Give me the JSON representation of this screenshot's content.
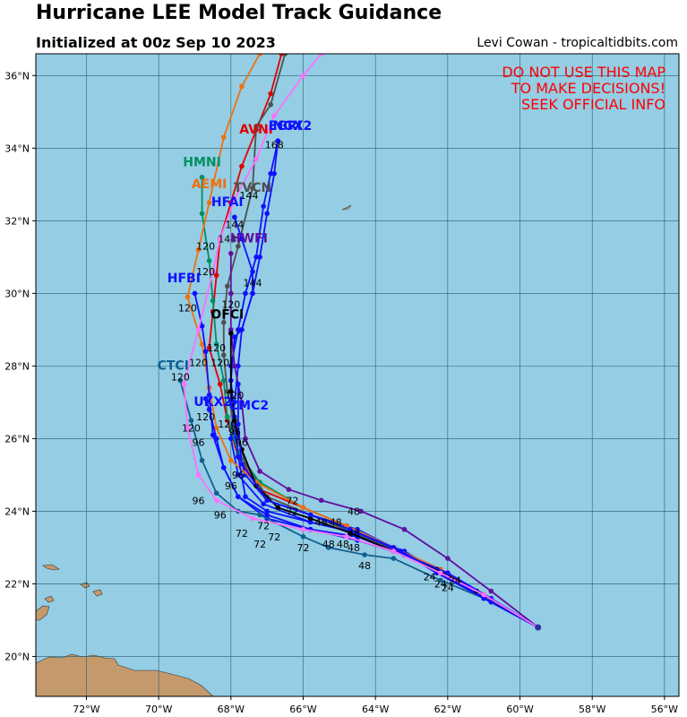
{
  "header": {
    "title": "Hurricane LEE Model Track Guidance",
    "subtitle": "Initialized at 00z Sep 10 2023",
    "credit": "Levi Cowan - tropicaltidbits.com"
  },
  "warning": [
    "DO NOT USE THIS MAP",
    "TO MAKE DECISIONS!",
    "SEEK OFFICIAL INFO"
  ],
  "colors": {
    "ocean": "#94cde4",
    "land": "#c49a6c",
    "grid": "#2b5d6e",
    "warning": "#ff0000"
  },
  "axes": {
    "lon_range": [
      -73.4,
      -55.6
    ],
    "lat_range": [
      18.9,
      36.6
    ],
    "lon_ticks": [
      {
        "v": -72,
        "t": "72°W"
      },
      {
        "v": -70,
        "t": "70°W"
      },
      {
        "v": -68,
        "t": "68°W"
      },
      {
        "v": -66,
        "t": "66°W"
      },
      {
        "v": -64,
        "t": "64°W"
      },
      {
        "v": -62,
        "t": "62°W"
      },
      {
        "v": -60,
        "t": "60°W"
      },
      {
        "v": -58,
        "t": "58°W"
      },
      {
        "v": -56,
        "t": "56°W"
      }
    ],
    "lat_ticks": [
      {
        "v": 20,
        "t": "20°N"
      },
      {
        "v": 22,
        "t": "22°N"
      },
      {
        "v": 24,
        "t": "24°N"
      },
      {
        "v": 26,
        "t": "26°N"
      },
      {
        "v": 28,
        "t": "28°N"
      },
      {
        "v": 30,
        "t": "30°N"
      },
      {
        "v": 32,
        "t": "32°N"
      },
      {
        "v": 34,
        "t": "34°N"
      },
      {
        "v": 36,
        "t": "36°N"
      }
    ]
  },
  "models": [
    {
      "name": "AVNI",
      "color": "#e00000",
      "label": [
        -67.3,
        34.4
      ],
      "track": [
        [
          -59.5,
          20.8
        ],
        [
          -61.0,
          21.7
        ],
        [
          -62.0,
          22.3
        ],
        [
          -63.5,
          23.0
        ],
        [
          -64.8,
          23.6
        ],
        [
          -66.0,
          24.1
        ],
        [
          -67.2,
          24.6
        ],
        [
          -67.8,
          25.5
        ],
        [
          -68.1,
          26.5
        ],
        [
          -68.3,
          27.5
        ],
        [
          -68.6,
          28.5
        ],
        [
          -68.5,
          29.5
        ],
        [
          -68.4,
          30.5
        ],
        [
          -68.3,
          31.5
        ],
        [
          -68.0,
          32.5
        ],
        [
          -67.7,
          33.5
        ],
        [
          -67.3,
          34.5
        ],
        [
          -66.9,
          35.5
        ],
        [
          -66.6,
          36.6
        ]
      ]
    },
    {
      "name": "EGRI",
      "color": "#1010ff",
      "label": [
        -66.5,
        34.5
      ],
      "track": [
        [
          -59.5,
          20.8
        ],
        [
          -61.0,
          21.6
        ],
        [
          -62.2,
          22.3
        ],
        [
          -63.5,
          23.0
        ],
        [
          -64.5,
          23.5
        ],
        [
          -65.8,
          23.9
        ],
        [
          -67.0,
          24.3
        ],
        [
          -67.6,
          25.0
        ],
        [
          -67.9,
          26.0
        ],
        [
          -68.0,
          27.0
        ],
        [
          -68.0,
          28.0
        ],
        [
          -67.8,
          29.0
        ],
        [
          -67.6,
          30.0
        ],
        [
          -67.3,
          31.0
        ],
        [
          -67.1,
          32.4
        ],
        [
          -66.9,
          33.3
        ],
        [
          -66.7,
          34.2
        ]
      ]
    },
    {
      "name": "NGX2",
      "color": "#1010ff",
      "label": [
        -66.3,
        34.5
      ],
      "track": [
        [
          -59.5,
          20.8
        ],
        [
          -60.8,
          21.5
        ],
        [
          -62.0,
          22.2
        ],
        [
          -63.2,
          22.9
        ],
        [
          -64.5,
          23.4
        ],
        [
          -65.8,
          23.7
        ],
        [
          -67.1,
          24.2
        ],
        [
          -67.8,
          25.0
        ],
        [
          -68.0,
          26.0
        ],
        [
          -67.9,
          27.0
        ],
        [
          -67.8,
          28.0
        ],
        [
          -67.7,
          29.0
        ],
        [
          -67.4,
          30.0
        ],
        [
          -67.2,
          31.0
        ],
        [
          -67.0,
          32.2
        ],
        [
          -66.8,
          33.3
        ],
        [
          -66.7,
          34.2
        ]
      ]
    },
    {
      "name": "HMNI",
      "color": "#009060",
      "label": [
        -68.8,
        33.5
      ],
      "track": [
        [
          -59.5,
          20.8
        ],
        [
          -61.0,
          21.7
        ],
        [
          -62.2,
          22.4
        ],
        [
          -63.5,
          23.0
        ],
        [
          -64.8,
          23.6
        ],
        [
          -66.0,
          24.1
        ],
        [
          -67.2,
          24.8
        ],
        [
          -67.8,
          25.6
        ],
        [
          -68.1,
          26.6
        ],
        [
          -68.2,
          27.6
        ],
        [
          -68.4,
          28.6
        ],
        [
          -68.5,
          29.8
        ],
        [
          -68.6,
          30.9
        ],
        [
          -68.8,
          32.2
        ],
        [
          -68.8,
          33.2
        ]
      ]
    },
    {
      "name": "TVCN",
      "color": "#505050",
      "label": [
        -67.4,
        32.8
      ],
      "track": [
        [
          -59.5,
          20.8
        ],
        [
          -61.0,
          21.7
        ],
        [
          -62.2,
          22.3
        ],
        [
          -63.4,
          22.9
        ],
        [
          -64.6,
          23.4
        ],
        [
          -65.8,
          23.9
        ],
        [
          -67.0,
          24.4
        ],
        [
          -67.6,
          25.3
        ],
        [
          -67.9,
          26.3
        ],
        [
          -68.1,
          27.3
        ],
        [
          -68.2,
          28.3
        ],
        [
          -68.2,
          29.2
        ],
        [
          -68.1,
          30.2
        ],
        [
          -67.8,
          31.3
        ],
        [
          -67.4,
          32.9
        ],
        [
          -67.3,
          34.6
        ],
        [
          -66.9,
          35.2
        ],
        [
          -66.5,
          36.6
        ]
      ]
    },
    {
      "name": "AEMI",
      "color": "#f07010",
      "label": [
        -68.6,
        32.9
      ],
      "track": [
        [
          -59.5,
          20.8
        ],
        [
          -61.0,
          21.7
        ],
        [
          -62.2,
          22.4
        ],
        [
          -63.5,
          23.0
        ],
        [
          -64.8,
          23.6
        ],
        [
          -66.0,
          24.1
        ],
        [
          -67.3,
          24.8
        ],
        [
          -68.0,
          25.4
        ],
        [
          -68.4,
          26.3
        ],
        [
          -68.6,
          27.4
        ],
        [
          -68.8,
          28.6
        ],
        [
          -69.2,
          29.9
        ],
        [
          -68.9,
          31.2
        ],
        [
          -68.6,
          32.5
        ],
        [
          -68.2,
          34.3
        ],
        [
          -67.7,
          35.7
        ],
        [
          -67.2,
          36.6
        ]
      ]
    },
    {
      "name": "HFAI",
      "color": "#1010ff",
      "label": [
        -68.1,
        32.4
      ],
      "track": [
        [
          -59.5,
          20.8
        ],
        [
          -60.8,
          21.5
        ],
        [
          -62.0,
          22.2
        ],
        [
          -63.3,
          22.9
        ],
        [
          -64.5,
          23.4
        ],
        [
          -65.8,
          23.7
        ],
        [
          -67.0,
          24.0
        ],
        [
          -67.6,
          24.4
        ],
        [
          -67.8,
          25.5
        ],
        [
          -67.9,
          26.6
        ],
        [
          -68.0,
          27.6
        ],
        [
          -67.9,
          28.8
        ],
        [
          -67.7,
          29.0
        ],
        [
          -67.4,
          30.0
        ],
        [
          -67.4,
          30.6
        ],
        [
          -67.7,
          31.5
        ],
        [
          -67.9,
          32.1
        ]
      ]
    },
    {
      "name": "HWFI",
      "color": "#6010a0",
      "label": [
        -67.5,
        31.4
      ],
      "track": [
        [
          -59.5,
          20.8
        ],
        [
          -60.8,
          21.8
        ],
        [
          -62.0,
          22.7
        ],
        [
          -63.2,
          23.5
        ],
        [
          -64.4,
          24.0
        ],
        [
          -65.5,
          24.3
        ],
        [
          -66.4,
          24.6
        ],
        [
          -67.2,
          25.1
        ],
        [
          -67.6,
          26.0
        ],
        [
          -67.7,
          27.0
        ],
        [
          -67.9,
          28.0
        ],
        [
          -68.0,
          29.0
        ],
        [
          -68.0,
          30.0
        ],
        [
          -68.0,
          31.1
        ]
      ]
    },
    {
      "name": "HFBI",
      "color": "#1010ff",
      "label": [
        -69.3,
        30.3
      ],
      "track": [
        [
          -59.5,
          20.8
        ],
        [
          -60.8,
          21.5
        ],
        [
          -62.0,
          22.2
        ],
        [
          -63.2,
          22.8
        ],
        [
          -64.5,
          23.3
        ],
        [
          -65.8,
          23.5
        ],
        [
          -67.0,
          23.8
        ],
        [
          -67.8,
          24.4
        ],
        [
          -68.2,
          25.2
        ],
        [
          -68.5,
          26.1
        ],
        [
          -68.6,
          27.2
        ],
        [
          -68.7,
          28.4
        ],
        [
          -68.8,
          29.1
        ],
        [
          -69.0,
          30.0
        ]
      ]
    },
    {
      "name": "OFCI",
      "color": "#000000",
      "label": [
        -68.1,
        29.3
      ],
      "track": [
        [
          -59.5,
          20.8
        ],
        [
          -61.2,
          21.8
        ],
        [
          -62.3,
          22.4
        ],
        [
          -63.5,
          22.9
        ],
        [
          -64.7,
          23.4
        ],
        [
          -65.8,
          23.8
        ],
        [
          -66.7,
          24.1
        ],
        [
          -67.3,
          24.7
        ],
        [
          -67.7,
          25.7
        ],
        [
          -67.9,
          26.5
        ],
        [
          -68.0,
          27.3
        ],
        [
          -68.0,
          28.9
        ]
      ]
    },
    {
      "name": "CTCI",
      "color": "#106090",
      "label": [
        -69.6,
        27.9
      ],
      "track": [
        [
          -59.5,
          20.8
        ],
        [
          -61.0,
          21.6
        ],
        [
          -62.2,
          22.1
        ],
        [
          -63.5,
          22.7
        ],
        [
          -64.3,
          22.8
        ],
        [
          -65.3,
          23.0
        ],
        [
          -66.0,
          23.3
        ],
        [
          -67.2,
          23.9
        ],
        [
          -67.8,
          24.0
        ],
        [
          -68.4,
          24.5
        ],
        [
          -68.8,
          25.4
        ],
        [
          -69.1,
          26.5
        ],
        [
          -69.4,
          27.6
        ]
      ]
    },
    {
      "name": "UKX2",
      "color": "#1010ff",
      "label": [
        -68.5,
        26.9
      ],
      "track": [
        [
          -59.5,
          20.8
        ],
        [
          -60.8,
          21.6
        ],
        [
          -62.0,
          22.3
        ],
        [
          -63.2,
          22.8
        ],
        [
          -64.5,
          23.2
        ],
        [
          -65.8,
          23.5
        ],
        [
          -67.0,
          23.9
        ],
        [
          -67.8,
          24.4
        ],
        [
          -68.2,
          25.2
        ],
        [
          -68.4,
          26.0
        ],
        [
          -68.6,
          26.8
        ],
        [
          -68.7,
          27.1
        ]
      ]
    },
    {
      "name": "CMC2",
      "color": "#1010ff",
      "label": [
        -67.5,
        26.8
      ],
      "track": [
        [
          -59.5,
          20.8
        ],
        [
          -61.0,
          21.6
        ],
        [
          -62.3,
          22.3
        ],
        [
          -63.5,
          23.0
        ],
        [
          -64.7,
          23.5
        ],
        [
          -65.8,
          23.9
        ],
        [
          -67.0,
          24.3
        ],
        [
          -67.7,
          25.3
        ],
        [
          -67.8,
          26.4
        ],
        [
          -67.8,
          27.5
        ]
      ]
    },
    {
      "name": "pink",
      "color": "#ff70ff",
      "label": null,
      "track": [
        [
          -59.5,
          20.8
        ],
        [
          -61.0,
          21.7
        ],
        [
          -62.2,
          22.3
        ],
        [
          -63.5,
          22.9
        ],
        [
          -64.8,
          23.3
        ],
        [
          -66.0,
          23.5
        ],
        [
          -67.4,
          23.8
        ],
        [
          -68.4,
          24.3
        ],
        [
          -68.9,
          25.0
        ],
        [
          -69.2,
          26.3
        ],
        [
          -69.3,
          27.5
        ],
        [
          -68.9,
          29.0
        ],
        [
          -68.5,
          30.6
        ],
        [
          -68.3,
          31.5
        ],
        [
          -67.9,
          32.6
        ],
        [
          -67.3,
          33.7
        ],
        [
          -66.8,
          34.9
        ],
        [
          -66.0,
          36.0
        ],
        [
          -65.5,
          36.6
        ]
      ]
    }
  ],
  "hour_labels": [
    {
      "t": "168",
      "p": [
        -66.8,
        34.0
      ]
    },
    {
      "t": "144",
      "p": [
        -67.5,
        32.6
      ]
    },
    {
      "t": "144",
      "p": [
        -67.9,
        31.8
      ]
    },
    {
      "t": "144",
      "p": [
        -68.1,
        31.4
      ]
    },
    {
      "t": "144",
      "p": [
        -67.4,
        30.2
      ]
    },
    {
      "t": "120",
      "p": [
        -68.7,
        31.2
      ]
    },
    {
      "t": "120",
      "p": [
        -68.7,
        30.5
      ]
    },
    {
      "t": "120",
      "p": [
        -68.0,
        29.6
      ]
    },
    {
      "t": "120",
      "p": [
        -69.2,
        29.5
      ]
    },
    {
      "t": "120",
      "p": [
        -68.4,
        28.4
      ]
    },
    {
      "t": "120",
      "p": [
        -68.9,
        28.0
      ]
    },
    {
      "t": "120",
      "p": [
        -68.3,
        28.0
      ]
    },
    {
      "t": "120",
      "p": [
        -69.4,
        27.6
      ]
    },
    {
      "t": "120",
      "p": [
        -67.9,
        27.1
      ]
    },
    {
      "t": "120",
      "p": [
        -68.7,
        26.5
      ]
    },
    {
      "t": "120",
      "p": [
        -68.1,
        26.3
      ]
    },
    {
      "t": "120",
      "p": [
        -69.1,
        26.2
      ]
    },
    {
      "t": "96",
      "p": [
        -68.9,
        25.8
      ]
    },
    {
      "t": "96",
      "p": [
        -67.9,
        26.1
      ]
    },
    {
      "t": "96",
      "p": [
        -67.7,
        25.8
      ]
    },
    {
      "t": "96",
      "p": [
        -67.8,
        24.9
      ]
    },
    {
      "t": "96",
      "p": [
        -68.0,
        24.6
      ]
    },
    {
      "t": "96",
      "p": [
        -68.9,
        24.2
      ]
    },
    {
      "t": "96",
      "p": [
        -68.3,
        23.8
      ]
    },
    {
      "t": "72",
      "p": [
        -66.3,
        24.2
      ]
    },
    {
      "t": "72",
      "p": [
        -66.3,
        23.9
      ]
    },
    {
      "t": "72",
      "p": [
        -67.1,
        23.5
      ]
    },
    {
      "t": "72",
      "p": [
        -67.7,
        23.3
      ]
    },
    {
      "t": "72",
      "p": [
        -66.8,
        23.2
      ]
    },
    {
      "t": "72",
      "p": [
        -67.2,
        23.0
      ]
    },
    {
      "t": "72",
      "p": [
        -66.0,
        22.9
      ]
    },
    {
      "t": "48",
      "p": [
        -64.6,
        23.9
      ]
    },
    {
      "t": "48",
      "p": [
        -65.5,
        23.6
      ]
    },
    {
      "t": "48",
      "p": [
        -65.1,
        23.6
      ]
    },
    {
      "t": "48",
      "p": [
        -64.6,
        23.3
      ]
    },
    {
      "t": "48",
      "p": [
        -64.9,
        23.0
      ]
    },
    {
      "t": "48",
      "p": [
        -65.3,
        23.0
      ]
    },
    {
      "t": "48",
      "p": [
        -64.6,
        22.9
      ]
    },
    {
      "t": "48",
      "p": [
        -64.3,
        22.4
      ]
    },
    {
      "t": "24",
      "p": [
        -62.5,
        22.1
      ]
    },
    {
      "t": "24",
      "p": [
        -62.2,
        21.9
      ]
    },
    {
      "t": "24",
      "p": [
        -62.0,
        21.8
      ]
    },
    {
      "t": "24",
      "p": [
        -61.8,
        22.0
      ]
    }
  ]
}
